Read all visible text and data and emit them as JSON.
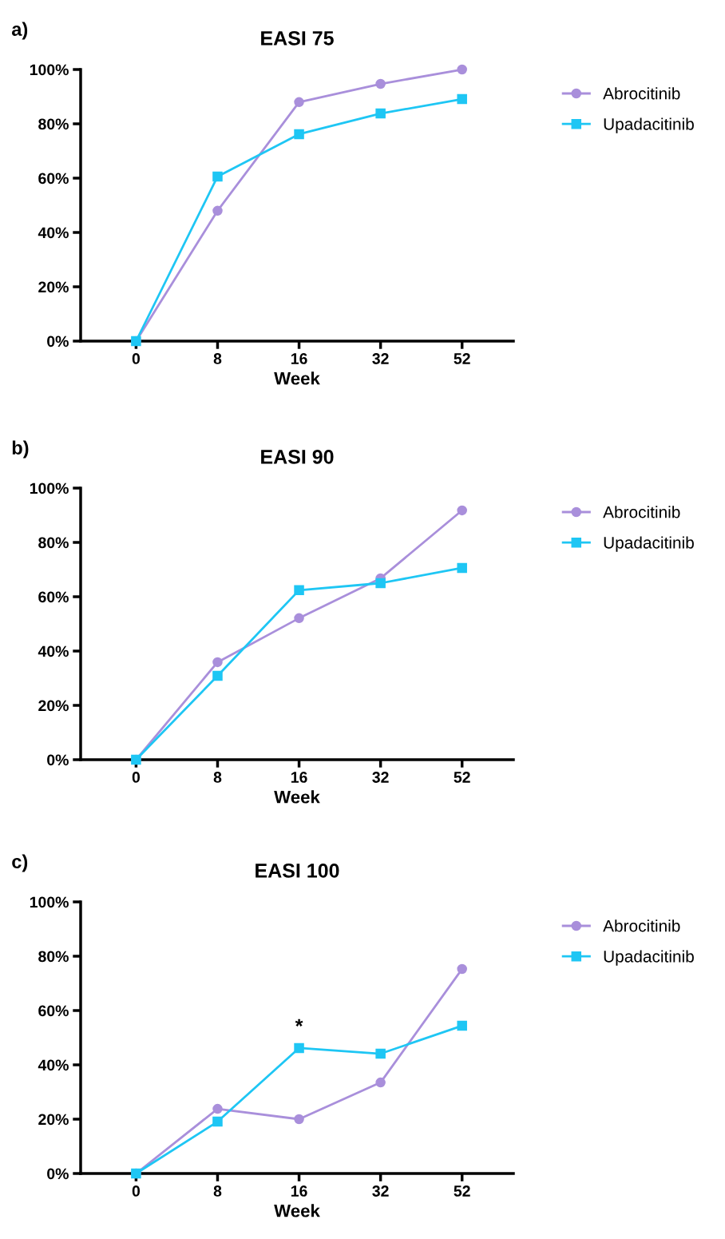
{
  "chart_data": [
    {
      "type": "line",
      "title": "EASI 75",
      "xlabel": "Week",
      "annotations": [
        "a)"
      ],
      "categories": [
        "0",
        "8",
        "16",
        "32",
        "52"
      ],
      "ylim": [
        0,
        100
      ],
      "yticks": [
        {
          "value": 0,
          "label": "0%"
        },
        {
          "value": 20,
          "label": "20%"
        },
        {
          "value": 40,
          "label": "40%"
        },
        {
          "value": 60,
          "label": "60%"
        },
        {
          "value": 80,
          "label": "80%"
        },
        {
          "value": 100,
          "label": "100%"
        }
      ],
      "legend": "right",
      "grid": false,
      "series": [
        {
          "name": "Abrocitinib",
          "color": "#a98fdb",
          "marker": "circle",
          "values": [
            0,
            48,
            88,
            94.7,
            100
          ]
        },
        {
          "name": "Upadacitinib",
          "color": "#1ec6f4",
          "marker": "square",
          "values": [
            0,
            60.6,
            76.2,
            83.8,
            89.1
          ]
        }
      ]
    },
    {
      "type": "line",
      "title": "EASI 90",
      "xlabel": "Week",
      "annotations": [
        "b)"
      ],
      "categories": [
        "0",
        "8",
        "16",
        "32",
        "52"
      ],
      "ylim": [
        0,
        100
      ],
      "yticks": [
        {
          "value": 0,
          "label": "0%"
        },
        {
          "value": 20,
          "label": "20%"
        },
        {
          "value": 40,
          "label": "40%"
        },
        {
          "value": 60,
          "label": "60%"
        },
        {
          "value": 80,
          "label": "80%"
        },
        {
          "value": 100,
          "label": "100%"
        }
      ],
      "legend": "right",
      "grid": false,
      "series": [
        {
          "name": "Abrocitinib",
          "color": "#a98fdb",
          "marker": "circle",
          "values": [
            0,
            35.9,
            52.1,
            66.8,
            91.8
          ]
        },
        {
          "name": "Upadacitinib",
          "color": "#1ec6f4",
          "marker": "square",
          "values": [
            0,
            30.9,
            62.4,
            65,
            70.6
          ]
        }
      ]
    },
    {
      "type": "line",
      "title": "EASI 100",
      "xlabel": "Week",
      "annotations": [
        "c)",
        {
          "text": "*",
          "x": "16",
          "y": 46.2
        }
      ],
      "categories": [
        "0",
        "8",
        "16",
        "32",
        "52"
      ],
      "ylim": [
        0,
        100
      ],
      "yticks": [
        {
          "value": 0,
          "label": "0%"
        },
        {
          "value": 20,
          "label": "20%"
        },
        {
          "value": 40,
          "label": "40%"
        },
        {
          "value": 60,
          "label": "60%"
        },
        {
          "value": 80,
          "label": "80%"
        },
        {
          "value": 100,
          "label": "100%"
        }
      ],
      "legend": "right",
      "grid": false,
      "series": [
        {
          "name": "Abrocitinib",
          "color": "#a98fdb",
          "marker": "circle",
          "values": [
            0,
            23.8,
            20,
            33.5,
            75.3
          ]
        },
        {
          "name": "Upadacitinib",
          "color": "#1ec6f4",
          "marker": "square",
          "values": [
            0,
            19.1,
            46.2,
            44.1,
            54.4
          ]
        }
      ]
    }
  ]
}
